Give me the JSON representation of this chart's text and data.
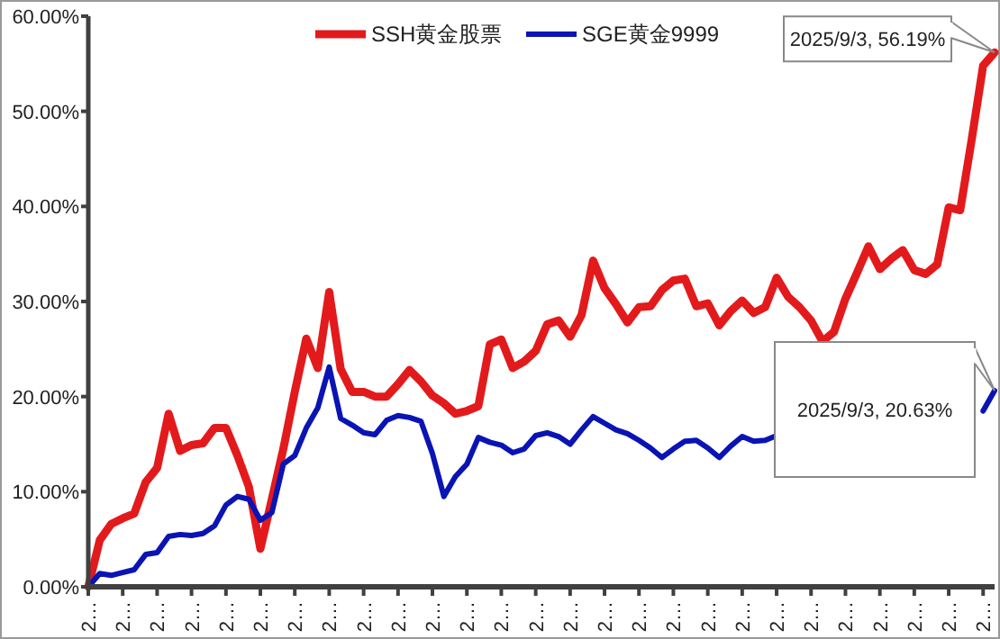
{
  "chart_data": {
    "type": "line",
    "legend": "top",
    "line_style": "solid",
    "marker": "none",
    "grid": false,
    "categories": [
      "2…",
      null,
      null,
      "2…",
      null,
      null,
      "2…",
      null,
      null,
      "2…",
      null,
      null,
      "2…",
      null,
      null,
      "2…",
      null,
      null,
      "2…",
      null,
      null,
      "2…",
      null,
      null,
      "2…",
      null,
      null,
      "2…",
      null,
      null,
      "2…",
      null,
      null,
      "2…",
      null,
      null,
      "2…",
      null,
      null,
      "2…",
      null,
      null,
      "2…",
      null,
      null,
      "2…",
      null,
      null,
      "2…",
      null,
      null,
      "2…",
      null,
      null,
      "2…",
      null,
      null,
      "2…",
      null,
      null,
      "2…",
      null,
      null,
      "2…",
      null,
      null,
      "2…",
      null,
      null,
      "2…",
      null,
      null,
      "2…",
      null,
      null,
      "2…",
      null,
      null,
      "2…",
      null
    ],
    "ylim": [
      0,
      60
    ],
    "yticks": [
      {
        "value": 0,
        "label": "0.00%"
      },
      {
        "value": 10,
        "label": "10.00%"
      },
      {
        "value": 20,
        "label": "20.00%"
      },
      {
        "value": 30,
        "label": "30.00%"
      },
      {
        "value": 40,
        "label": "40.00%"
      },
      {
        "value": 50,
        "label": "50.00%"
      },
      {
        "value": 60,
        "label": "60.00%"
      }
    ],
    "series": [
      {
        "name": "SSH黄金股票",
        "color": "#e31a1c",
        "values": [
          0,
          4.9,
          6.6,
          7.2,
          7.7,
          11,
          12.5,
          18.2,
          14.3,
          14.9,
          15.1,
          16.7,
          16.7,
          13.8,
          10.5,
          4.0,
          9.2,
          14.5,
          20.5,
          26.1,
          23.0,
          31.0,
          22.9,
          20.5,
          20.5,
          20.0,
          20.0,
          21.3,
          22.8,
          21.6,
          20.1,
          19.3,
          18.2,
          18.5,
          19.0,
          25.5,
          26.0,
          23.0,
          23.7,
          24.8,
          27.6,
          28.0,
          26.3,
          28.6,
          34.3,
          31.4,
          29.7,
          27.8,
          29.4,
          29.5,
          31.2,
          32.2,
          32.4,
          29.5,
          29.8,
          27.5,
          29.0,
          30.1,
          28.8,
          29.4,
          32.5,
          30.5,
          29.4,
          28.0,
          25.8,
          26.8,
          30.3,
          33.0,
          35.8,
          33.4,
          34.5,
          35.4,
          33.3,
          32.9,
          33.9,
          39.9,
          39.6,
          47.0,
          54.8,
          56.19
        ]
      },
      {
        "name": "SGE黄金9999",
        "color": "#0a14b4",
        "values": [
          0,
          1.4,
          1.2,
          1.5,
          1.8,
          3.4,
          3.6,
          5.3,
          5.5,
          5.4,
          5.6,
          6.4,
          8.6,
          9.5,
          9.2,
          7.0,
          7.8,
          12.9,
          13.8,
          16.7,
          18.8,
          23.1,
          17.7,
          17.0,
          16.2,
          16.0,
          17.5,
          18.0,
          17.8,
          17.4,
          14.0,
          9.5,
          11.6,
          12.9,
          15.7,
          15.2,
          14.9,
          14.1,
          14.5,
          15.9,
          16.2,
          15.8,
          15.0,
          16.5,
          17.9,
          17.2,
          16.5,
          16.1,
          15.4,
          14.6,
          13.6,
          14.5,
          15.3,
          15.4,
          14.6,
          13.6,
          14.8,
          15.8,
          15.3,
          15.4,
          15.9,
          null,
          null,
          null,
          null,
          null,
          null,
          null,
          null,
          null,
          null,
          null,
          null,
          null,
          null,
          null,
          null,
          null,
          18.5,
          20.63
        ]
      }
    ],
    "annotations": [
      "2025/9/3, 56.19%",
      "2025/9/3, 20.63%"
    ]
  }
}
